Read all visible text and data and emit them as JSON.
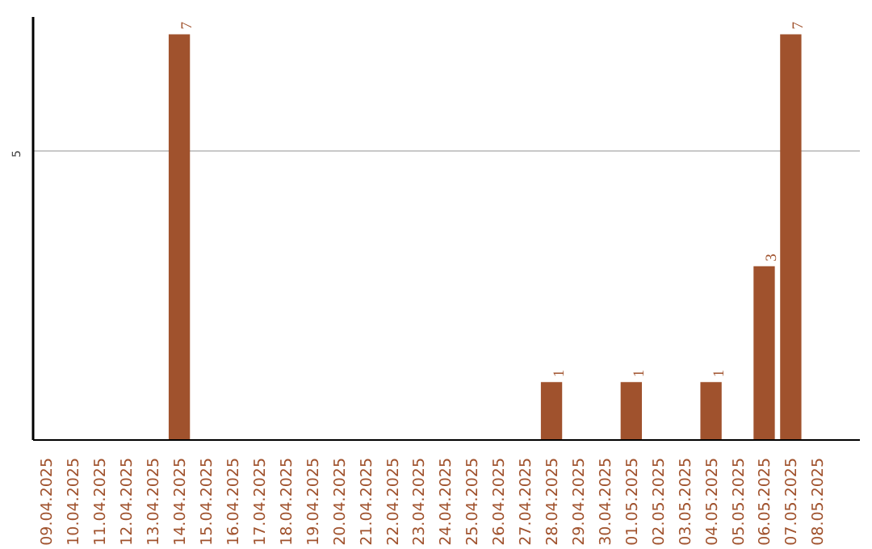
{
  "chart_data": {
    "type": "bar",
    "color": "#a0522d",
    "categories": [
      "09.04.2025",
      "10.04.2025",
      "11.04.2025",
      "12.04.2025",
      "13.04.2025",
      "14.04.2025",
      "15.04.2025",
      "16.04.2025",
      "17.04.2025",
      "18.04.2025",
      "19.04.2025",
      "20.04.2025",
      "21.04.2025",
      "22.04.2025",
      "23.04.2025",
      "24.04.2025",
      "25.04.2025",
      "26.04.2025",
      "27.04.2025",
      "28.04.2025",
      "29.04.2025",
      "30.04.2025",
      "01.05.2025",
      "02.05.2025",
      "03.05.2025",
      "04.05.2025",
      "05.05.2025",
      "06.05.2025",
      "07.05.2025",
      "08.05.2025"
    ],
    "values": [
      0,
      0,
      0,
      0,
      0,
      7,
      0,
      0,
      0,
      0,
      0,
      0,
      0,
      0,
      0,
      0,
      0,
      0,
      0,
      1,
      0,
      0,
      1,
      0,
      0,
      1,
      0,
      3,
      7,
      0
    ],
    "value_labels": [
      null,
      null,
      null,
      null,
      null,
      "7",
      null,
      null,
      null,
      null,
      null,
      null,
      null,
      null,
      null,
      null,
      null,
      null,
      null,
      "1",
      null,
      null,
      "1",
      null,
      null,
      "1",
      null,
      "3",
      "7",
      null
    ],
    "ylim": [
      0,
      7.3
    ],
    "yticks": [
      5
    ],
    "grid": "y"
  }
}
